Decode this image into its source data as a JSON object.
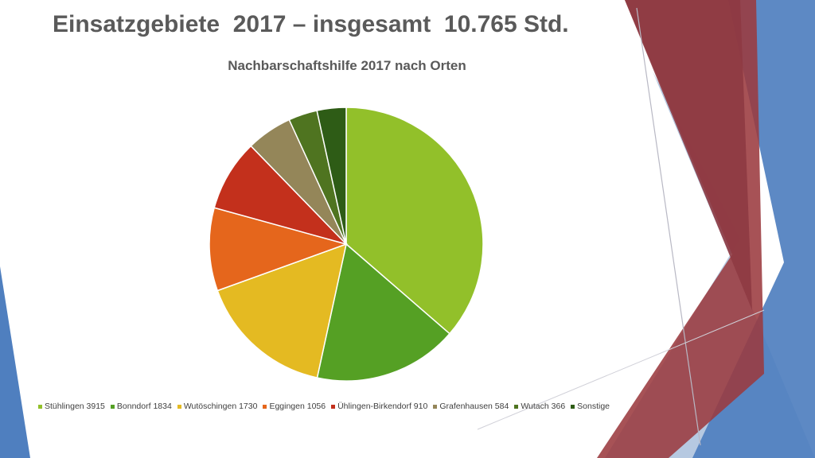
{
  "slide": {
    "title": "Einsatzgebiete  2017 – insgesamt  10.765 Std.",
    "colors": {
      "title_text": "#5a5a5a",
      "deco_red": "#9b3a3f",
      "deco_blue": "#4f7fbf",
      "deco_lightblue": "#a9c0dc"
    }
  },
  "chart_data": {
    "type": "pie",
    "title": "Nachbarschaftshilfe 2017 nach Orten",
    "legend_position": "bottom",
    "slices": [
      {
        "label": "Stühlingen 3915",
        "value": 3915,
        "color": "#92c02a"
      },
      {
        "label": "Bonndorf 1834",
        "value": 1834,
        "color": "#55a024"
      },
      {
        "label": "Wutöschingen 1730",
        "value": 1730,
        "color": "#e4ba22"
      },
      {
        "label": "Eggingen 1056",
        "value": 1056,
        "color": "#e5661c"
      },
      {
        "label": "Ühlingen-Birkendorf 910",
        "value": 910,
        "color": "#c3301c"
      },
      {
        "label": "Grafenhausen 584",
        "value": 584,
        "color": "#948659"
      },
      {
        "label": "Wutach 366",
        "value": 366,
        "color": "#4f7420"
      },
      {
        "label": "Sonstige",
        "value": 370,
        "color": "#2e5c16"
      }
    ]
  }
}
